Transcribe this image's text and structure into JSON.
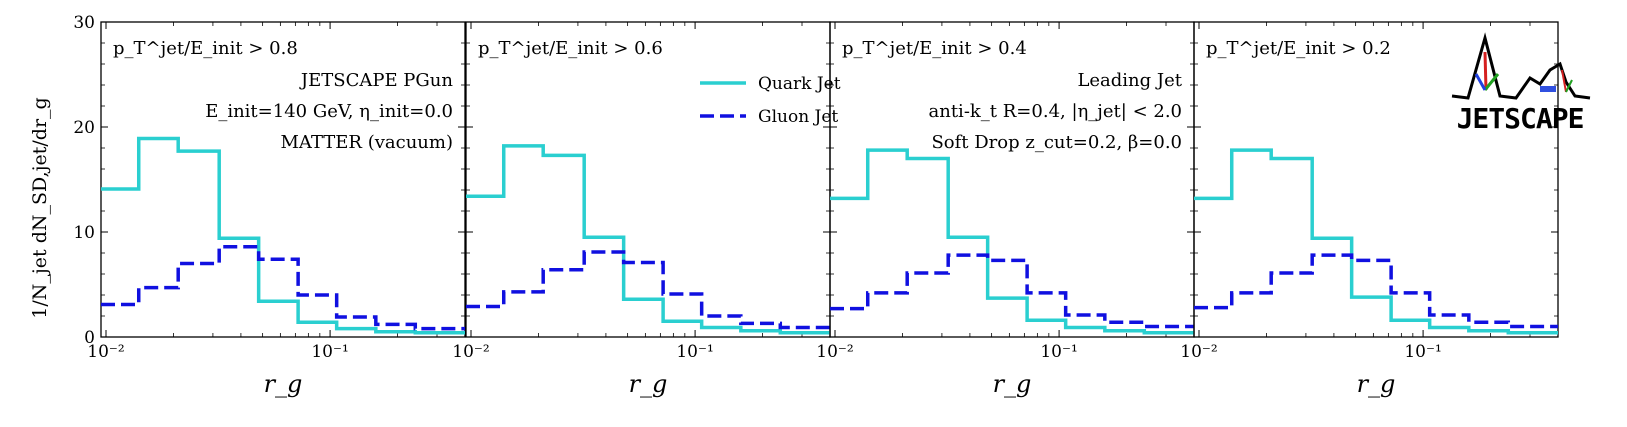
{
  "chart_data": {
    "type": "line",
    "style": "step histogram",
    "ylabel": "1/N_jet dN_SD,jet/dr_g",
    "xlabel": "r_g",
    "x_scale": "log",
    "xlim": [
      0.0095,
      0.4
    ],
    "ylim": [
      0,
      30
    ],
    "yticks": [
      "0",
      "10",
      "20",
      "30"
    ],
    "xticks": [
      {
        "value": 0.01,
        "label": "10⁻²"
      },
      {
        "value": 0.1,
        "label": "10⁻¹"
      }
    ],
    "bin_edges": [
      0.0095,
      0.014,
      0.021,
      0.032,
      0.048,
      0.072,
      0.107,
      0.16,
      0.24,
      0.4
    ],
    "legend": {
      "placement": "top-center of panel 2",
      "entries": [
        "Quark Jet",
        "Gluon Jet"
      ]
    },
    "colors": {
      "quark": "#2acfd0",
      "gluon": "#1010e0"
    },
    "panels": [
      {
        "cut_label": "p_T^jet/E_init > 0.8",
        "annotations": [
          "JETSCAPE PGun",
          "E_init=140 GeV, η_init=0.0",
          "MATTER (vacuum)"
        ],
        "series": [
          {
            "name": "Quark Jet",
            "values": [
              14.1,
              18.9,
              17.7,
              9.4,
              3.4,
              1.4,
              0.8,
              0.5,
              0.4
            ]
          },
          {
            "name": "Gluon Jet",
            "values": [
              3.1,
              4.7,
              7.0,
              8.6,
              7.4,
              4.0,
              1.9,
              1.2,
              0.8
            ]
          }
        ]
      },
      {
        "cut_label": "p_T^jet/E_init > 0.6",
        "annotations": [],
        "series": [
          {
            "name": "Quark Jet",
            "values": [
              13.4,
              18.2,
              17.3,
              9.5,
              3.6,
              1.5,
              0.9,
              0.6,
              0.4
            ]
          },
          {
            "name": "Gluon Jet",
            "values": [
              2.9,
              4.3,
              6.4,
              8.1,
              7.1,
              4.1,
              2.0,
              1.3,
              0.9
            ]
          }
        ]
      },
      {
        "cut_label": "p_T^jet/E_init > 0.4",
        "annotations": [
          "Leading Jet",
          "anti-k_t R=0.4, |η_jet| < 2.0",
          "Soft Drop z_cut=0.2, β=0.0"
        ],
        "series": [
          {
            "name": "Quark Jet",
            "values": [
              13.2,
              17.8,
              17.0,
              9.5,
              3.7,
              1.6,
              0.9,
              0.6,
              0.4
            ]
          },
          {
            "name": "Gluon Jet",
            "values": [
              2.7,
              4.2,
              6.1,
              7.8,
              7.3,
              4.2,
              2.1,
              1.4,
              1.0
            ]
          }
        ]
      },
      {
        "cut_label": "p_T^jet/E_init > 0.2",
        "annotations": [],
        "series": [
          {
            "name": "Quark Jet",
            "values": [
              13.2,
              17.8,
              17.0,
              9.4,
              3.8,
              1.6,
              0.9,
              0.6,
              0.4
            ]
          },
          {
            "name": "Gluon Jet",
            "values": [
              2.8,
              4.2,
              6.1,
              7.8,
              7.3,
              4.2,
              2.1,
              1.4,
              1.0
            ]
          }
        ]
      }
    ]
  },
  "legend_labels": {
    "quark": "Quark Jet",
    "gluon": "Gluon Jet"
  },
  "logo": {
    "text": "JETSCAPE"
  }
}
